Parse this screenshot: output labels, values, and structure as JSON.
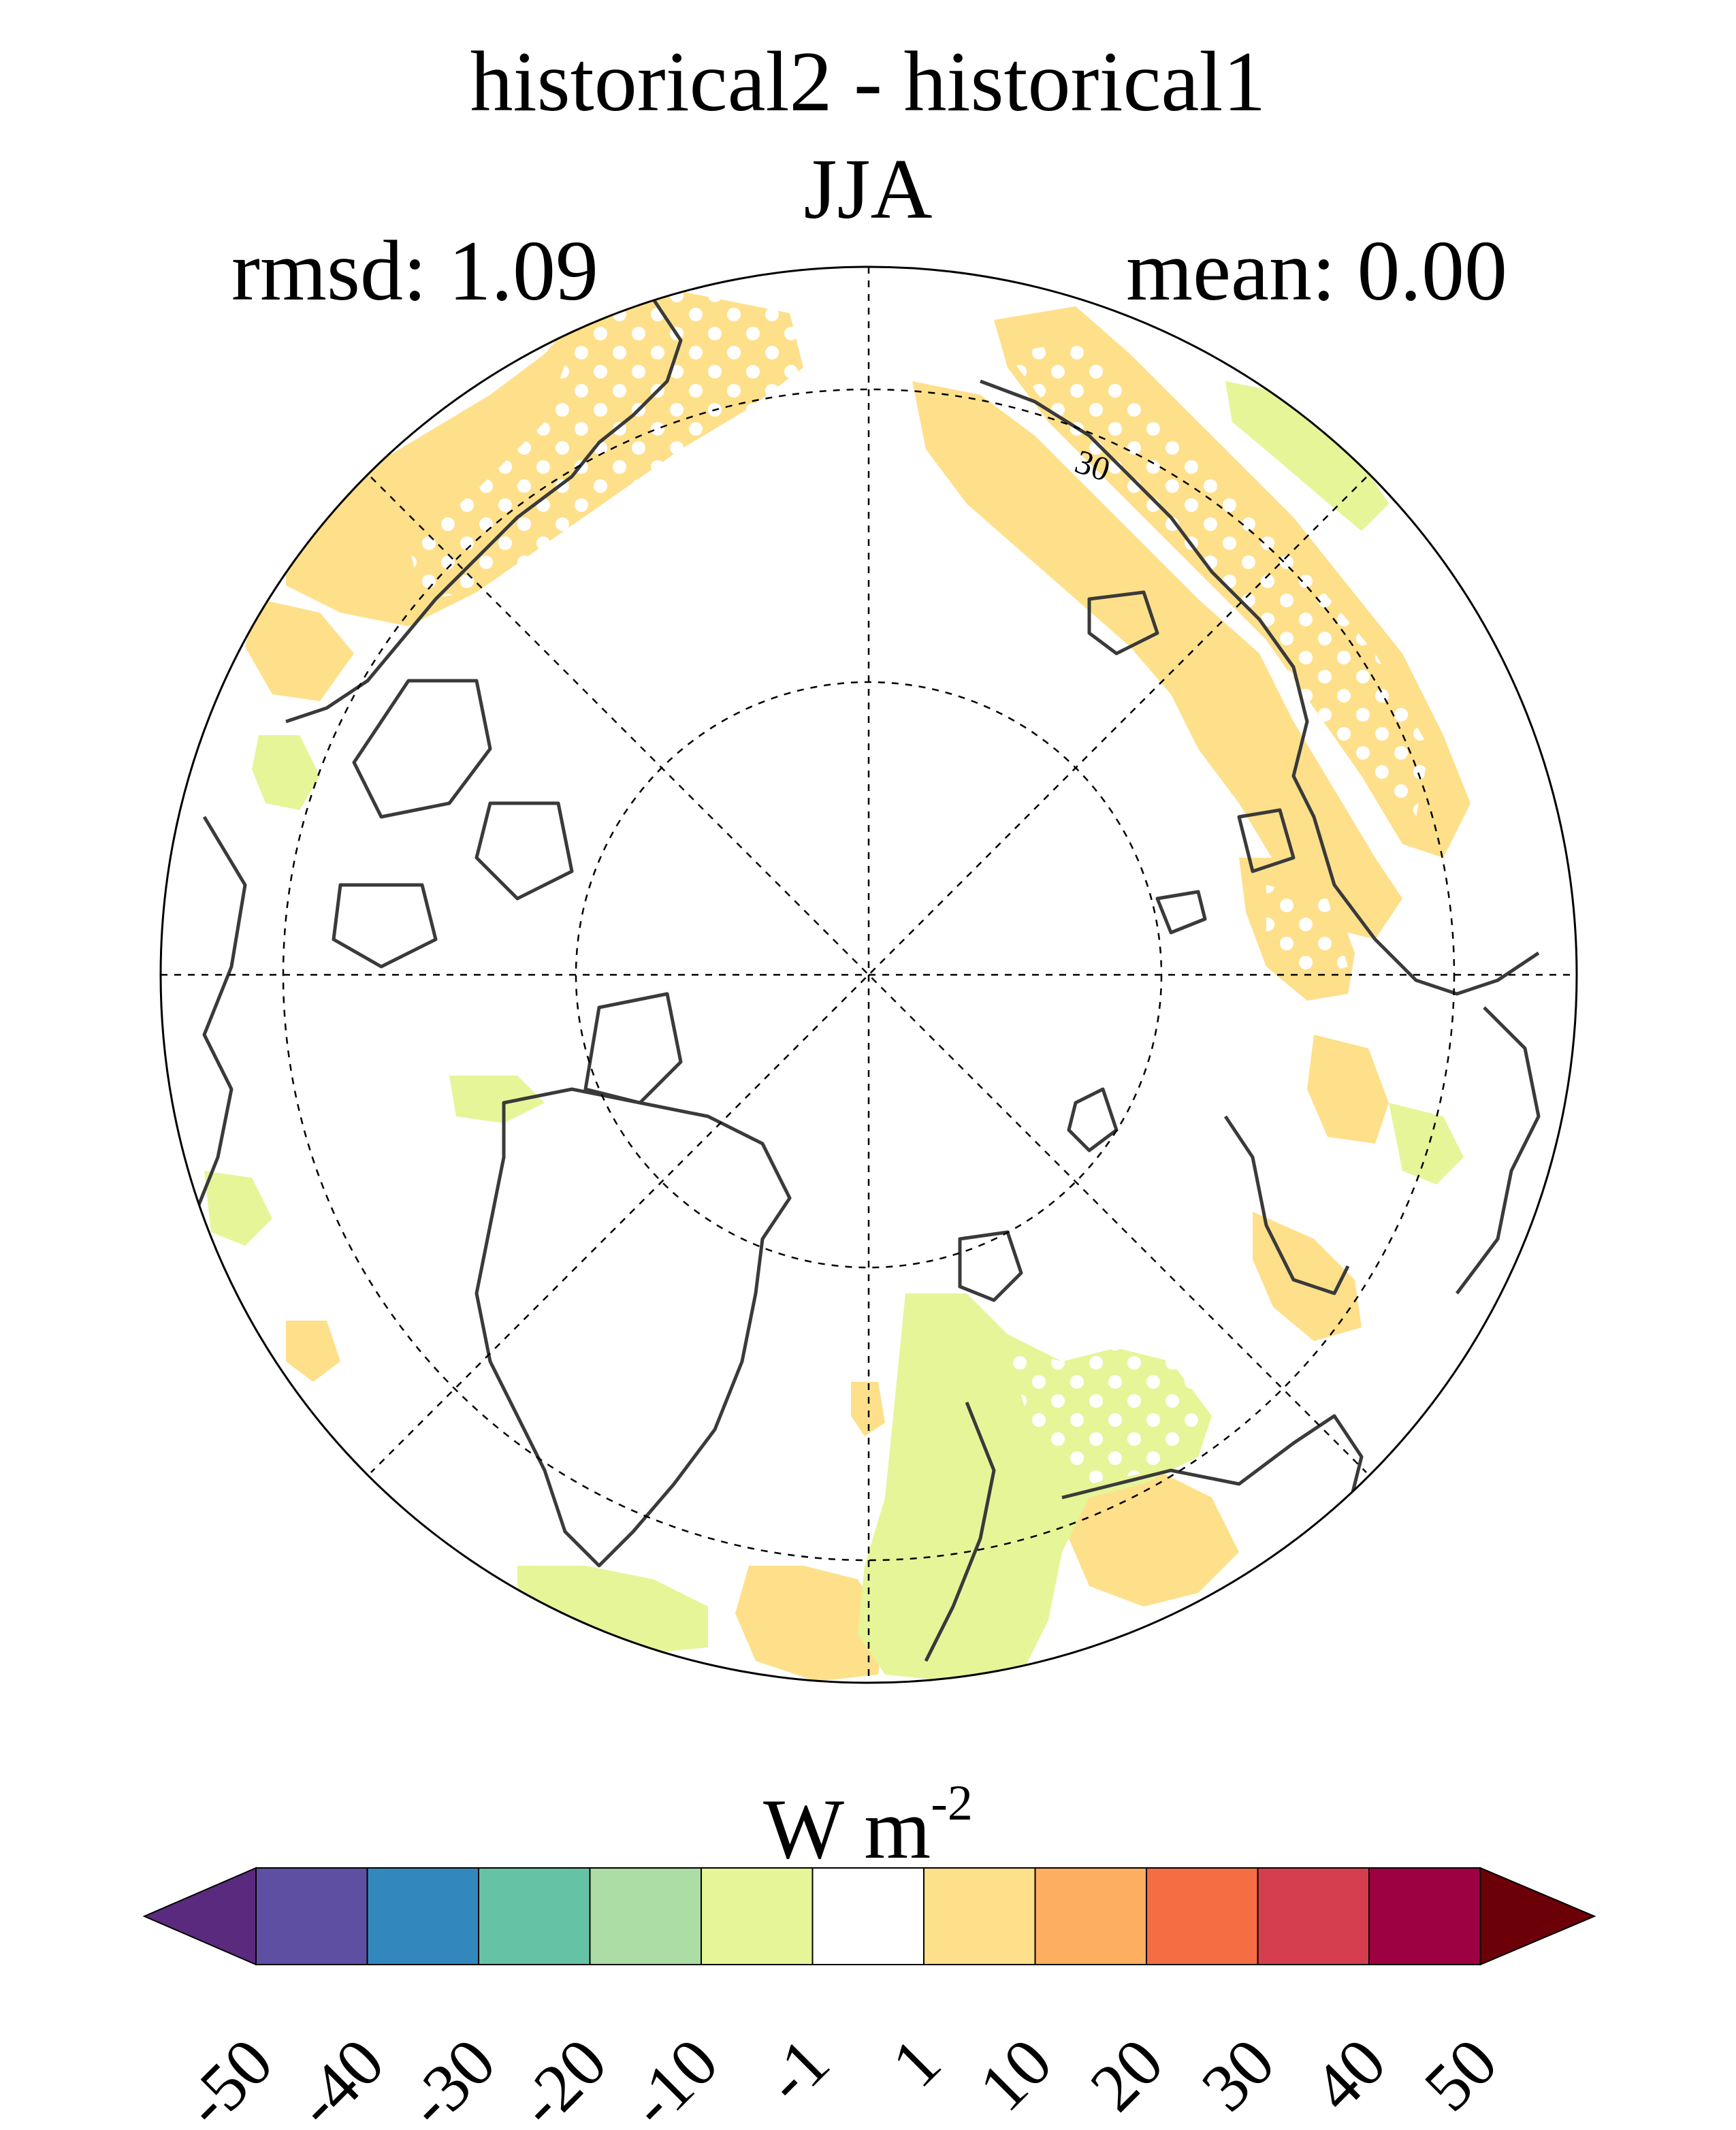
{
  "title": "historical2 - historical1",
  "season": "JJA",
  "stats": {
    "rmsd": "rmsd: 1.09",
    "mean": "mean: 0.00"
  },
  "map": {
    "projection": "north-polar-stereographic",
    "contour_label": "30",
    "land_outline_color": "#3a3a3a",
    "stipple_color": "#ffffff"
  },
  "colorbar": {
    "units_base": "W m",
    "units_exp": "-2",
    "ticks": [
      "-50",
      "-40",
      "-30",
      "-20",
      "-10",
      "-1",
      "1",
      "10",
      "20",
      "30",
      "40",
      "50"
    ],
    "colors": [
      "#5a2a7e",
      "#5e4fa2",
      "#3288bd",
      "#66c2a5",
      "#abdda4",
      "#e6f598",
      "#ffffff",
      "#fee08b",
      "#fdae61",
      "#f46d43",
      "#d53e4f",
      "#9e0142",
      "#6b0008"
    ]
  }
}
